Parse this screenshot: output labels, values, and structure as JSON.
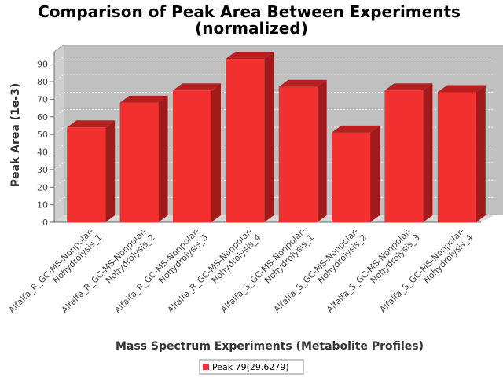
{
  "colors": {
    "bar_front": "#f23030",
    "bar_top": "#b82020",
    "bar_side": "#a01c1c",
    "plot_back": "#c0c0c0",
    "plot_floor": "#d8d8d8",
    "plot_wall": "#cfcfcf"
  },
  "chart_data": {
    "type": "bar",
    "title": "Comparison of Peak Area Between Experiments (normalized)",
    "title_lines": [
      "Comparison of Peak Area Between Experiments",
      "(normalized)"
    ],
    "xlabel": "Mass Spectrum Experiments (Metabolite Profiles)",
    "ylabel": "Peak Area (1e-3)",
    "ylim": [
      0,
      97
    ],
    "yticks": [
      0,
      10,
      20,
      30,
      40,
      50,
      60,
      70,
      80,
      90
    ],
    "grid": true,
    "legend_position": "bottom",
    "categories": [
      [
        "Alfalfa_R_GC-MS-Nonpolar-",
        "Nohydrolysis_1"
      ],
      [
        "Alfalfa_R_GC-MS-Nonpolar-",
        "Nohydrolysis_2"
      ],
      [
        "Alfalfa_R_GC-MS-Nonpolar-",
        "Nohydrolysis_3"
      ],
      [
        "Alfalfa_R_GC-MS-Nonpolar-",
        "Nohydrolysis_4"
      ],
      [
        "Alfalfa_S_GC-MS-Nonpolar-",
        "Nohydrolysis_1"
      ],
      [
        "Alfalfa_S_GC-MS-Nonpolar-",
        "Nohydrolysis_2"
      ],
      [
        "Alfalfa_S_GC-MS-Nonpolar-",
        "Nohydrolysis_3"
      ],
      [
        "Alfalfa_S_GC-MS-Nonpolar-",
        "Nohydrolysis_4"
      ]
    ],
    "series": [
      {
        "name": "Peak 79(29.6279)",
        "values": [
          54,
          68,
          75,
          93,
          77,
          51,
          75,
          74
        ]
      }
    ]
  }
}
